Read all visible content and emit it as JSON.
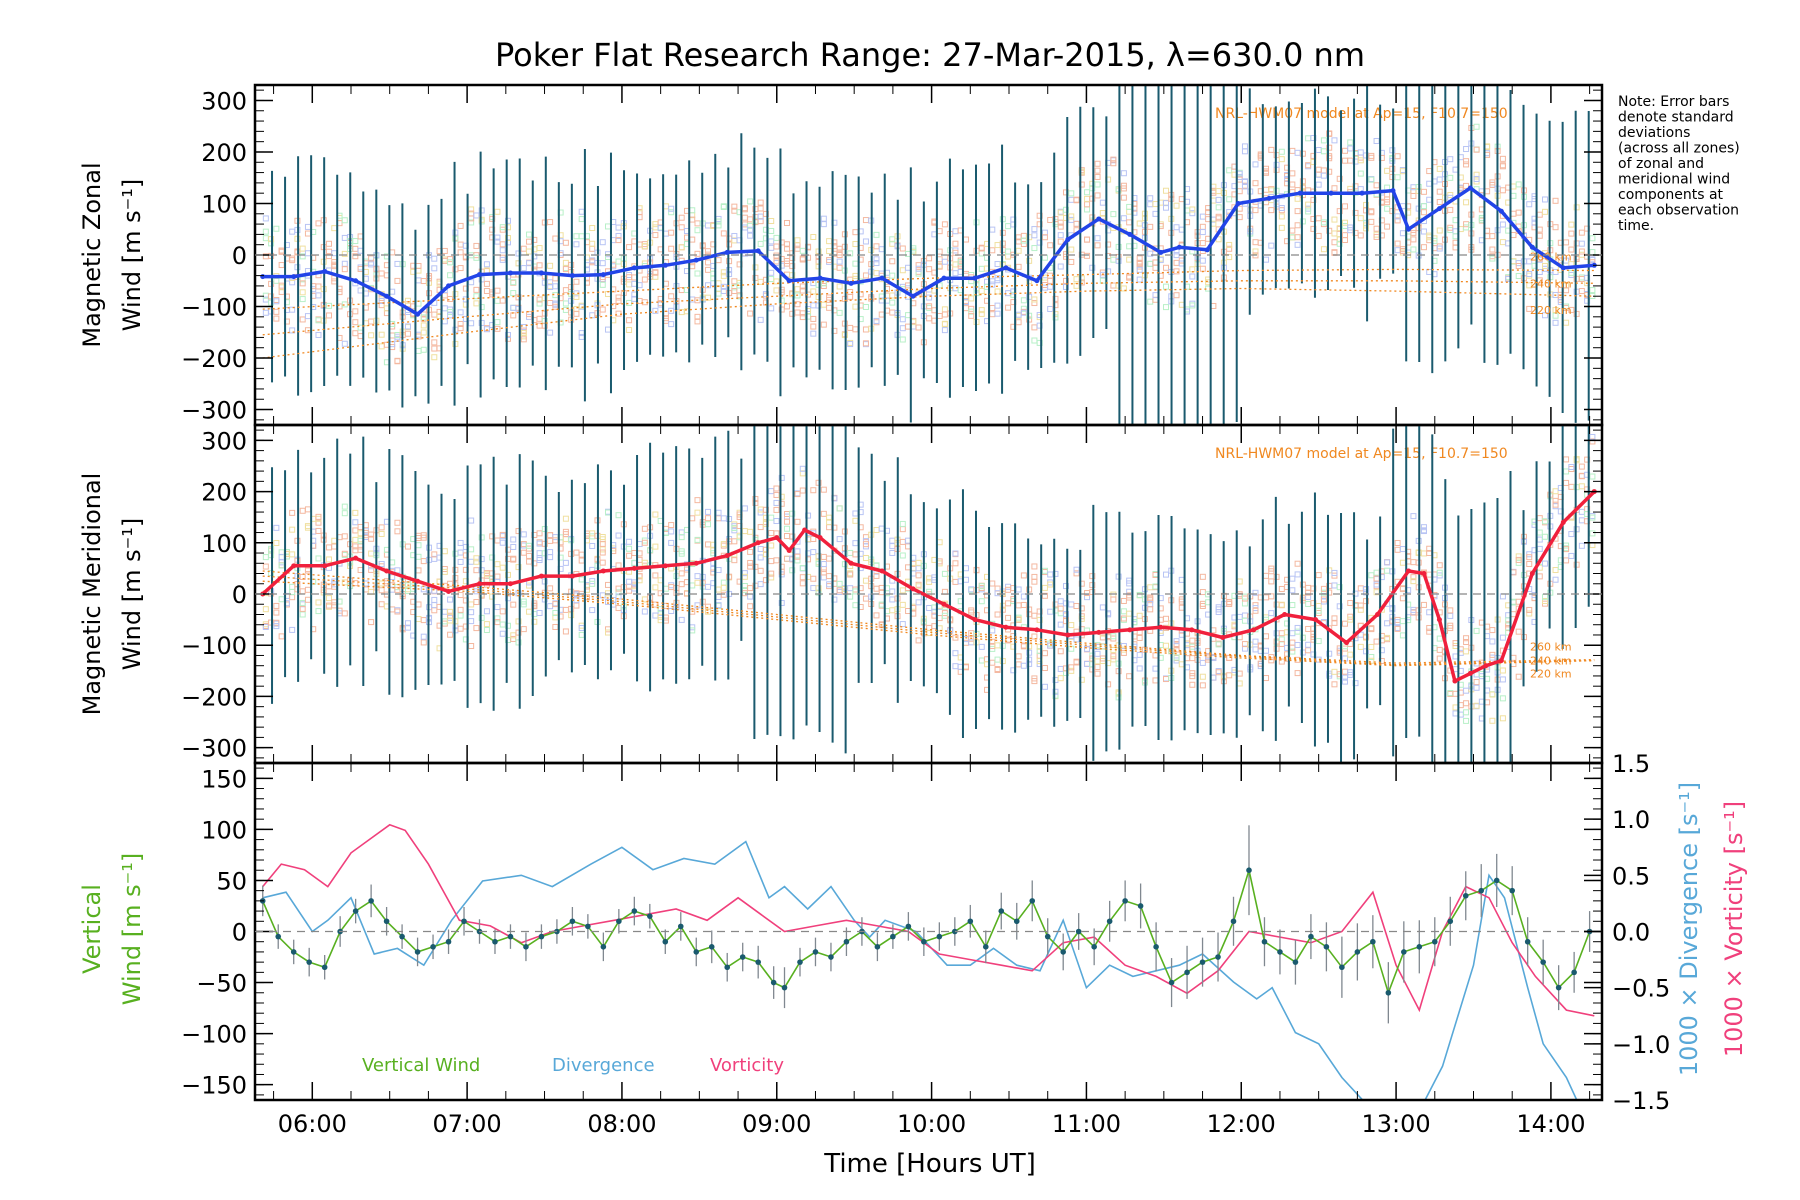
{
  "title": "Poker Flat Research Range: 27-Mar-2015, λ=630.0 nm",
  "note": "Note: Error bars denote standard deviations (across all zones) of zonal and meridional wind components at each observation time.",
  "colors": {
    "zonal": "#2244e8",
    "meridional": "#f0203c",
    "vertical": "#58b020",
    "divergence": "#58a8d8",
    "vorticity": "#f0407c",
    "model": "#f08820",
    "errorbar": "#1a5a6e"
  },
  "chart_data": [
    {
      "type": "line",
      "name": "zonal",
      "ylabel": "Magnetic Zonal",
      "ylabel2": "Wind [m s⁻¹]",
      "ylim": [
        -330,
        330
      ],
      "yticks": [
        -300,
        -200,
        -100,
        0,
        100,
        200,
        300
      ],
      "model_label": "NRL-HWM07 model at Ap=15, F10.7=150",
      "model_alt_labels": [
        "260 km",
        "240 km",
        "220 km"
      ],
      "x": [
        5.68,
        5.88,
        6.08,
        6.28,
        6.48,
        6.68,
        6.88,
        7.08,
        7.28,
        7.48,
        7.68,
        7.88,
        8.08,
        8.28,
        8.48,
        8.68,
        8.88,
        9.08,
        9.28,
        9.48,
        9.68,
        9.88,
        10.08,
        10.28,
        10.48,
        10.68,
        10.88,
        11.08,
        11.28,
        11.48,
        11.6,
        11.78,
        11.98,
        12.18,
        12.38,
        12.58,
        12.78,
        12.98,
        13.08,
        13.28,
        13.48,
        13.68,
        13.88,
        14.08,
        14.28
      ],
      "values": [
        -42,
        -42,
        -32,
        -50,
        -80,
        -115,
        -60,
        -38,
        -35,
        -35,
        -40,
        -38,
        -25,
        -20,
        -10,
        5,
        8,
        -50,
        -45,
        -55,
        -45,
        -80,
        -45,
        -45,
        -25,
        -50,
        30,
        70,
        40,
        5,
        15,
        10,
        100,
        110,
        120,
        120,
        120,
        125,
        50,
        90,
        130,
        85,
        15,
        -25,
        -20
      ],
      "models": [
        {
          "label": "260 km",
          "x": [
            5.68,
            7.0,
            8.0,
            9.0,
            10.0,
            11.0,
            12.0,
            13.0,
            14.28
          ],
          "values": [
            -105,
            -85,
            -70,
            -55,
            -45,
            -38,
            -30,
            -28,
            -30
          ]
        },
        {
          "label": "240 km",
          "x": [
            5.68,
            7.0,
            8.0,
            9.0,
            10.0,
            11.0,
            12.0,
            13.0,
            14.28
          ],
          "values": [
            -155,
            -120,
            -95,
            -80,
            -65,
            -55,
            -50,
            -50,
            -55
          ]
        },
        {
          "label": "220 km",
          "x": [
            5.68,
            7.0,
            8.0,
            9.0,
            10.0,
            11.0,
            12.0,
            13.0,
            14.28
          ],
          "values": [
            -200,
            -150,
            -115,
            -95,
            -80,
            -70,
            -65,
            -70,
            -80
          ]
        }
      ]
    },
    {
      "type": "line",
      "name": "meridional",
      "ylabel": "Magnetic Meridional",
      "ylabel2": "Wind [m s⁻¹]",
      "ylim": [
        -330,
        330
      ],
      "yticks": [
        -300,
        -200,
        -100,
        0,
        100,
        200,
        300
      ],
      "model_label": "NRL-HWM07 model at Ap=15, F10.7=150",
      "model_alt_labels": [
        "260 km",
        "240 km",
        "220 km"
      ],
      "x": [
        5.68,
        5.88,
        6.08,
        6.28,
        6.48,
        6.68,
        6.88,
        7.08,
        7.28,
        7.48,
        7.68,
        7.88,
        8.08,
        8.28,
        8.48,
        8.68,
        8.88,
        9.0,
        9.08,
        9.18,
        9.28,
        9.48,
        9.68,
        9.88,
        10.08,
        10.28,
        10.48,
        10.68,
        10.88,
        11.08,
        11.28,
        11.48,
        11.68,
        11.88,
        12.08,
        12.28,
        12.48,
        12.68,
        12.88,
        13.08,
        13.18,
        13.28,
        13.38,
        13.48,
        13.58,
        13.68,
        13.88,
        14.08,
        14.28
      ],
      "values": [
        0,
        55,
        55,
        70,
        45,
        25,
        5,
        20,
        20,
        35,
        35,
        45,
        50,
        55,
        60,
        75,
        100,
        110,
        85,
        125,
        110,
        60,
        45,
        10,
        -20,
        -50,
        -65,
        -70,
        -80,
        -75,
        -70,
        -65,
        -70,
        -85,
        -70,
        -40,
        -50,
        -95,
        -40,
        45,
        40,
        -50,
        -170,
        -155,
        -140,
        -130,
        40,
        140,
        200
      ],
      "models": [
        {
          "label": "260 km",
          "x": [
            5.68,
            7.0,
            8.0,
            9.0,
            10.0,
            11.0,
            12.0,
            13.0,
            14.28
          ],
          "values": [
            25,
            5,
            -20,
            -50,
            -80,
            -105,
            -125,
            -140,
            -130
          ]
        },
        {
          "label": "240 km",
          "x": [
            5.68,
            7.0,
            8.0,
            9.0,
            10.0,
            11.0,
            12.0,
            13.0,
            14.28
          ],
          "values": [
            35,
            10,
            -15,
            -45,
            -75,
            -100,
            -122,
            -138,
            -130
          ]
        },
        {
          "label": "220 km",
          "x": [
            5.68,
            7.0,
            8.0,
            9.0,
            10.0,
            11.0,
            12.0,
            13.0,
            14.28
          ],
          "values": [
            45,
            15,
            -10,
            -40,
            -70,
            -96,
            -120,
            -135,
            -128
          ]
        }
      ]
    },
    {
      "type": "line",
      "name": "vertical",
      "ylabel": "Vertical",
      "ylabel2": "Wind [m s⁻¹]",
      "ylim": [
        -165,
        165
      ],
      "yticks": [
        -150,
        -100,
        -50,
        0,
        50,
        100,
        150
      ],
      "y2label": "1000 × Divergence [s⁻¹]",
      "y3label": "1000 × Vorticity [s⁻¹]",
      "y2lim": [
        -1.5,
        1.5
      ],
      "y2ticks": [
        -1.5,
        -1.0,
        -0.5,
        0.0,
        0.5,
        1.0,
        1.5
      ],
      "xlabel": "Time [Hours UT]",
      "xlim": [
        5.63,
        14.33
      ],
      "xticks": [
        "06:00",
        "07:00",
        "08:00",
        "09:00",
        "10:00",
        "11:00",
        "12:00",
        "13:00",
        "14:00"
      ],
      "legend": [
        "Vertical Wind",
        "Divergence",
        "Vorticity"
      ],
      "series": [
        {
          "name": "Vertical Wind",
          "x": [
            5.68,
            5.78,
            5.88,
            5.98,
            6.08,
            6.18,
            6.28,
            6.38,
            6.48,
            6.58,
            6.68,
            6.78,
            6.88,
            6.98,
            7.08,
            7.18,
            7.28,
            7.38,
            7.48,
            7.58,
            7.68,
            7.78,
            7.88,
            7.98,
            8.08,
            8.18,
            8.28,
            8.38,
            8.48,
            8.58,
            8.68,
            8.78,
            8.88,
            8.98,
            9.05,
            9.15,
            9.25,
            9.35,
            9.45,
            9.55,
            9.65,
            9.75,
            9.85,
            9.95,
            10.05,
            10.15,
            10.25,
            10.35,
            10.45,
            10.55,
            10.65,
            10.75,
            10.85,
            10.95,
            11.05,
            11.15,
            11.25,
            11.35,
            11.45,
            11.55,
            11.65,
            11.75,
            11.85,
            11.95,
            12.05,
            12.15,
            12.25,
            12.35,
            12.45,
            12.55,
            12.65,
            12.75,
            12.85,
            12.95,
            13.05,
            13.15,
            13.25,
            13.35,
            13.45,
            13.55,
            13.65,
            13.75,
            13.85,
            13.95,
            14.05,
            14.15,
            14.25
          ],
          "values": [
            30,
            -5,
            -20,
            -30,
            -35,
            0,
            20,
            30,
            10,
            -5,
            -20,
            -15,
            -10,
            10,
            0,
            -10,
            -5,
            -15,
            -5,
            0,
            10,
            5,
            -15,
            10,
            20,
            15,
            -10,
            5,
            -20,
            -15,
            -35,
            -25,
            -30,
            -50,
            -55,
            -30,
            -20,
            -25,
            -10,
            0,
            -15,
            -5,
            5,
            -10,
            -5,
            0,
            10,
            -15,
            20,
            10,
            30,
            -5,
            -20,
            0,
            -15,
            10,
            30,
            25,
            -15,
            -50,
            -40,
            -30,
            -25,
            10,
            60,
            -10,
            -20,
            -30,
            -5,
            -15,
            -35,
            -20,
            -10,
            -60,
            -20,
            -15,
            -10,
            10,
            35,
            40,
            50,
            40,
            -10,
            -30,
            -55,
            -40,
            0
          ],
          "err": [
            15,
            12,
            12,
            14,
            12,
            15,
            12,
            16,
            14,
            12,
            14,
            12,
            12,
            14,
            12,
            12,
            12,
            14,
            12,
            12,
            14,
            12,
            14,
            12,
            14,
            12,
            12,
            14,
            14,
            16,
            14,
            14,
            16,
            16,
            20,
            14,
            14,
            14,
            14,
            14,
            14,
            12,
            14,
            14,
            14,
            14,
            16,
            16,
            18,
            18,
            20,
            18,
            18,
            18,
            18,
            20,
            20,
            22,
            24,
            24,
            26,
            24,
            24,
            24,
            44,
            24,
            22,
            22,
            22,
            24,
            30,
            28,
            26,
            30,
            30,
            26,
            24,
            24,
            24,
            26,
            26,
            24,
            24,
            22,
            22,
            20,
            20
          ]
        },
        {
          "name": "Divergence",
          "x": [
            5.68,
            5.83,
            6.0,
            6.1,
            6.25,
            6.4,
            6.55,
            6.72,
            6.9,
            7.1,
            7.35,
            7.55,
            7.8,
            8.0,
            8.2,
            8.4,
            8.6,
            8.8,
            8.95,
            9.05,
            9.2,
            9.35,
            9.5,
            9.6,
            9.7,
            9.9,
            10.1,
            10.25,
            10.4,
            10.55,
            10.7,
            10.85,
            11.0,
            11.15,
            11.3,
            11.45,
            11.6,
            11.75,
            11.95,
            12.1,
            12.2,
            12.35,
            12.5,
            12.65,
            12.85,
            13.0,
            13.15,
            13.3,
            13.5,
            13.6,
            13.7,
            13.85,
            13.95,
            14.1,
            14.2,
            14.28
          ],
          "values": [
            0.3,
            0.35,
            0.0,
            0.1,
            0.3,
            -0.2,
            -0.15,
            -0.3,
            0.1,
            0.45,
            0.5,
            0.4,
            0.6,
            0.75,
            0.55,
            0.65,
            0.6,
            0.8,
            0.3,
            0.4,
            0.2,
            0.4,
            0.1,
            -0.05,
            0.1,
            0.0,
            -0.3,
            -0.3,
            -0.15,
            -0.3,
            -0.35,
            0.1,
            -0.5,
            -0.3,
            -0.4,
            -0.35,
            -0.3,
            -0.2,
            -0.45,
            -0.6,
            -0.5,
            -0.9,
            -1.0,
            -1.3,
            -1.6,
            -1.7,
            -1.6,
            -1.2,
            -0.3,
            0.5,
            0.3,
            -0.5,
            -1.0,
            -1.3,
            -1.6,
            -1.7
          ]
        },
        {
          "name": "Vorticity",
          "x": [
            5.68,
            5.8,
            5.95,
            6.1,
            6.25,
            6.35,
            6.5,
            6.6,
            6.75,
            6.95,
            7.15,
            7.35,
            7.55,
            7.75,
            7.95,
            8.15,
            8.35,
            8.55,
            8.75,
            8.9,
            9.05,
            9.25,
            9.45,
            9.65,
            9.85,
            10.05,
            10.25,
            10.45,
            10.65,
            10.85,
            11.05,
            11.25,
            11.45,
            11.65,
            11.85,
            12.05,
            12.25,
            12.45,
            12.65,
            12.85,
            13.0,
            13.15,
            13.3,
            13.45,
            13.6,
            13.75,
            13.9,
            14.1,
            14.28
          ],
          "values": [
            0.4,
            0.6,
            0.55,
            0.4,
            0.7,
            0.8,
            0.95,
            0.9,
            0.6,
            0.1,
            0.05,
            -0.1,
            0.0,
            0.05,
            0.1,
            0.15,
            0.2,
            0.1,
            0.3,
            0.15,
            0.0,
            0.05,
            0.1,
            0.05,
            0.0,
            -0.2,
            -0.25,
            -0.3,
            -0.35,
            -0.1,
            -0.05,
            -0.3,
            -0.4,
            -0.55,
            -0.35,
            0.0,
            -0.05,
            -0.1,
            0.0,
            0.35,
            -0.3,
            -0.7,
            0.0,
            0.4,
            0.3,
            -0.1,
            -0.4,
            -0.7,
            -0.75
          ]
        }
      ]
    }
  ]
}
